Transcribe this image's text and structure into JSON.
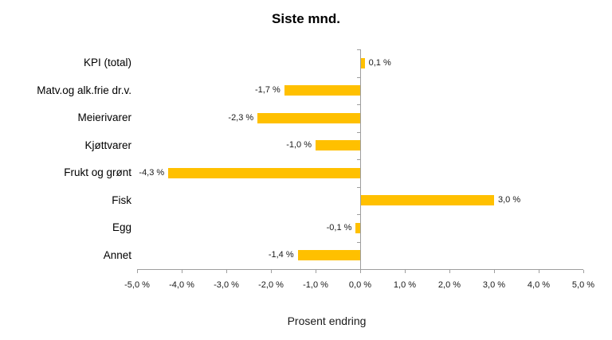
{
  "chart": {
    "title": "Siste mnd.",
    "xlabel": "Prosent endring"
  },
  "chart_data": {
    "type": "bar",
    "orientation": "horizontal",
    "title": "Siste mnd.",
    "xlabel": "Prosent endring",
    "categories": [
      "KPI (total)",
      "Matv.og alk.frie dr.v.",
      "Meierivarer",
      "Kjøttvarer",
      "Frukt og grønt",
      "Fisk",
      "Egg",
      "Annet"
    ],
    "values": [
      0.1,
      -1.7,
      -2.3,
      -1.0,
      -4.3,
      3.0,
      -0.1,
      -1.4
    ],
    "value_labels": [
      "0,1 %",
      "-1,7 %",
      "-2,3 %",
      "-1,0 %",
      "-4,3 %",
      "3,0 %",
      "-0,1 %",
      "-1,4 %"
    ],
    "xlim": [
      -5.0,
      5.0
    ],
    "xticks": [
      -5,
      -4,
      -3,
      -2,
      -1,
      0,
      1,
      2,
      3,
      4,
      5
    ],
    "xtick_labels": [
      "-5,0 %",
      "-4,0 %",
      "-3,0 %",
      "-2,0 %",
      "-1,0 %",
      "0,0 %",
      "1,0 %",
      "2,0 %",
      "3,0 %",
      "4,0 %",
      "5,0 %"
    ],
    "bar_color": "#FFC000",
    "axis_color": "#9E9E9E",
    "grid": false,
    "legend": false
  }
}
